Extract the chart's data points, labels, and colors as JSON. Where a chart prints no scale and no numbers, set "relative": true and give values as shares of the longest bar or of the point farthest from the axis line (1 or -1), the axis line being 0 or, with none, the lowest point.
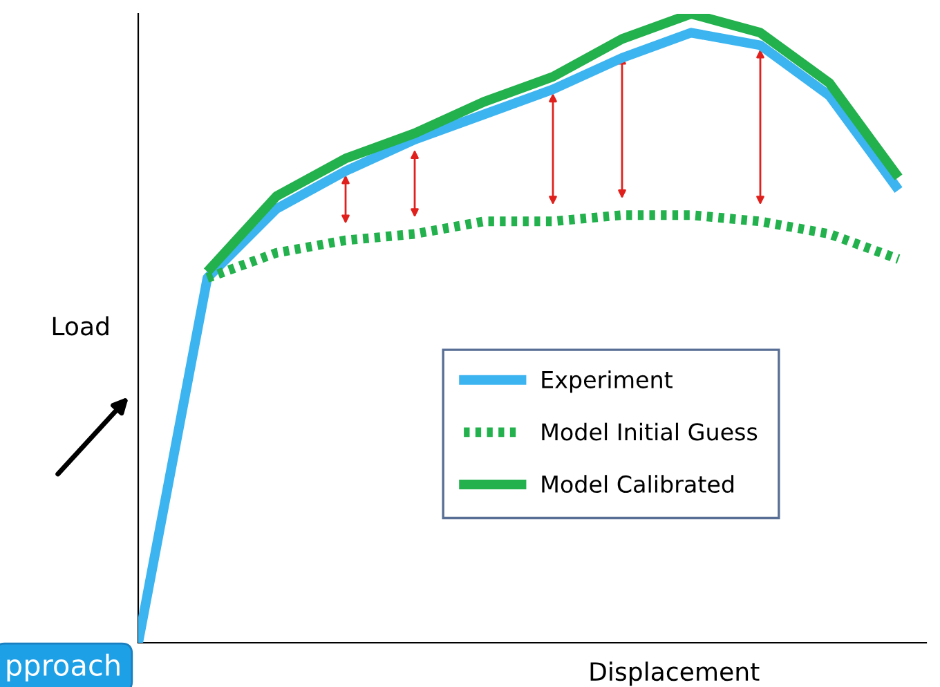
{
  "chart_data": {
    "type": "line",
    "relative": true,
    "xlabel": "Displacement",
    "ylabel": "Load",
    "categories": [
      null,
      null,
      null,
      null,
      null,
      null,
      null,
      null,
      null,
      null,
      null,
      null
    ],
    "series": [
      {
        "name": "Experiment",
        "color": "#3cb4f0",
        "line_style": "solid",
        "values": [
          0,
          0.58,
          0.69,
          0.75,
          0.8,
          0.84,
          0.88,
          0.93,
          0.97,
          0.95,
          0.87,
          0.72
        ]
      },
      {
        "name": "Model Initial Guess",
        "color": "#22b14c",
        "line_style": "dotted",
        "values": [
          null,
          0.58,
          0.62,
          0.64,
          0.65,
          0.67,
          0.67,
          0.68,
          0.68,
          0.67,
          0.65,
          0.61
        ]
      },
      {
        "name": "Model Calibrated",
        "color": "#22b14c",
        "line_style": "solid",
        "values": [
          null,
          0.59,
          0.71,
          0.77,
          0.81,
          0.86,
          0.9,
          0.96,
          1.0,
          0.97,
          0.89,
          0.74
        ]
      }
    ],
    "legend": "bottom",
    "marker": "none",
    "annotations": [
      "pproach"
    ]
  }
}
